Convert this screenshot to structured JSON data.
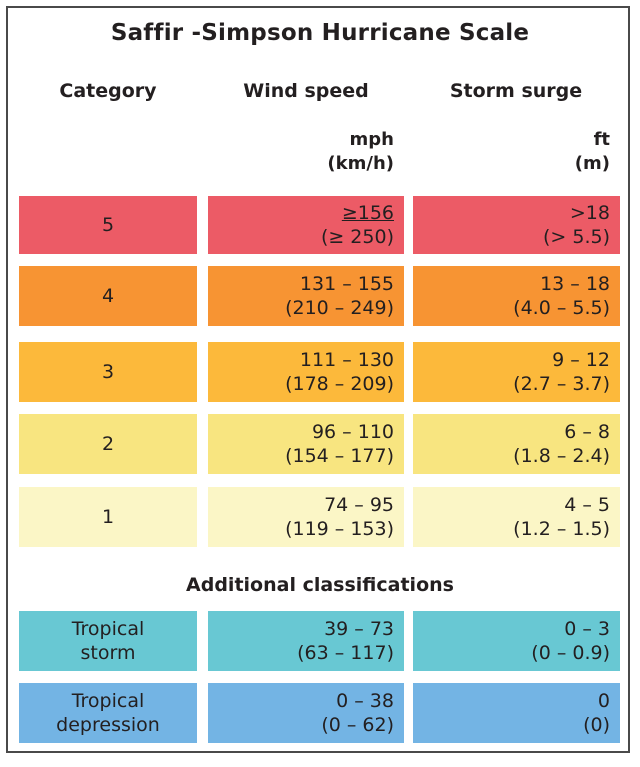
{
  "title": "Saffir -Simpson Hurricane Scale",
  "headers": {
    "category": "Category",
    "wind_speed": "Wind speed",
    "storm_surge": "Storm surge"
  },
  "units": {
    "wind_primary": "mph",
    "wind_secondary": "(km/h)",
    "surge_primary": "ft",
    "surge_secondary": "(m)"
  },
  "rows": [
    {
      "category": "5",
      "wind_mph": "≥156",
      "wind_kmh": "(≥ 250)",
      "surge_ft": ">18",
      "surge_m": "(> 5.5)",
      "color": "#ec5b66"
    },
    {
      "category": "4",
      "wind_mph": "131 – 155",
      "wind_kmh": "(210 – 249)",
      "surge_ft": "13 – 18",
      "surge_m": "(4.0 – 5.5)",
      "color": "#f79433"
    },
    {
      "category": "3",
      "wind_mph": "111 – 130",
      "wind_kmh": "(178 – 209)",
      "surge_ft": "9 – 12",
      "surge_m": "(2.7 – 3.7)",
      "color": "#fcb93b"
    },
    {
      "category": "2",
      "wind_mph": "96 – 110",
      "wind_kmh": "(154 – 177)",
      "surge_ft": "6 – 8",
      "surge_m": "(1.8 – 2.4)",
      "color": "#f8e580"
    },
    {
      "category": "1",
      "wind_mph": "74 – 95",
      "wind_kmh": "(119 – 153)",
      "surge_ft": "4 – 5",
      "surge_m": "(1.2 – 1.5)",
      "color": "#fbf6c6"
    }
  ],
  "additional_title": "Additional classifications",
  "additional_rows": [
    {
      "category_line1": "Tropical",
      "category_line2": "storm",
      "wind_mph": "39 – 73",
      "wind_kmh": "(63 – 117)",
      "surge_ft": "0 – 3",
      "surge_m": "(0 – 0.9)",
      "color": "#68c8d3"
    },
    {
      "category_line1": "Tropical",
      "category_line2": "depression",
      "wind_mph": "0 – 38",
      "wind_kmh": "(0 – 62)",
      "surge_ft": "0",
      "surge_m": "(0)",
      "color": "#73b4e4"
    }
  ]
}
